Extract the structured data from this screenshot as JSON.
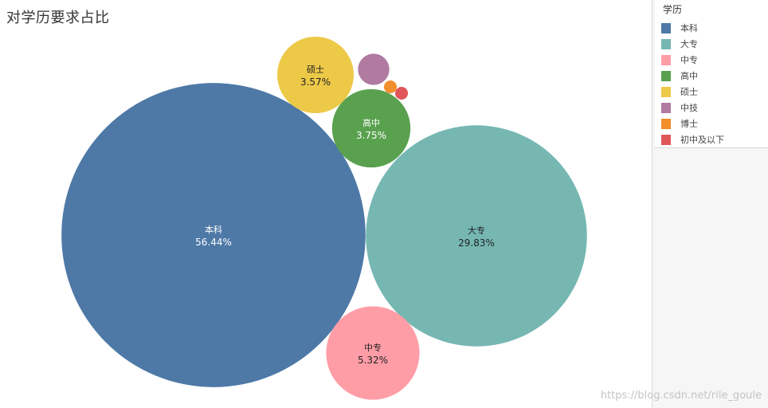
{
  "title": "对学历要求占比",
  "legend": {
    "title": "学历"
  },
  "watermark": "https://blog.csdn.net/rile_goule",
  "chart_data": {
    "type": "bubble",
    "title": "对学历要求占比",
    "legend_title": "学历",
    "legend_placement": "right",
    "series": [
      {
        "name": "本科",
        "share": 56.44,
        "label": "56.44%",
        "color": "#4e79a7"
      },
      {
        "name": "大专",
        "share": 29.83,
        "label": "29.83%",
        "color": "#76b7b2"
      },
      {
        "name": "中专",
        "share": 5.32,
        "label": "5.32%",
        "color": "#ff9da7"
      },
      {
        "name": "高中",
        "share": 3.75,
        "label": "3.75%",
        "color": "#59a14f"
      },
      {
        "name": "硕士",
        "share": 3.57,
        "label": "3.57%",
        "color": "#edc948"
      },
      {
        "name": "中技",
        "share": 0.6,
        "label": "",
        "color": "#b07aa1"
      },
      {
        "name": "博士",
        "share": 0.1,
        "label": "",
        "color": "#f28e2b"
      },
      {
        "name": "初中及以下",
        "share": 0.1,
        "label": "",
        "color": "#e15759"
      }
    ]
  }
}
